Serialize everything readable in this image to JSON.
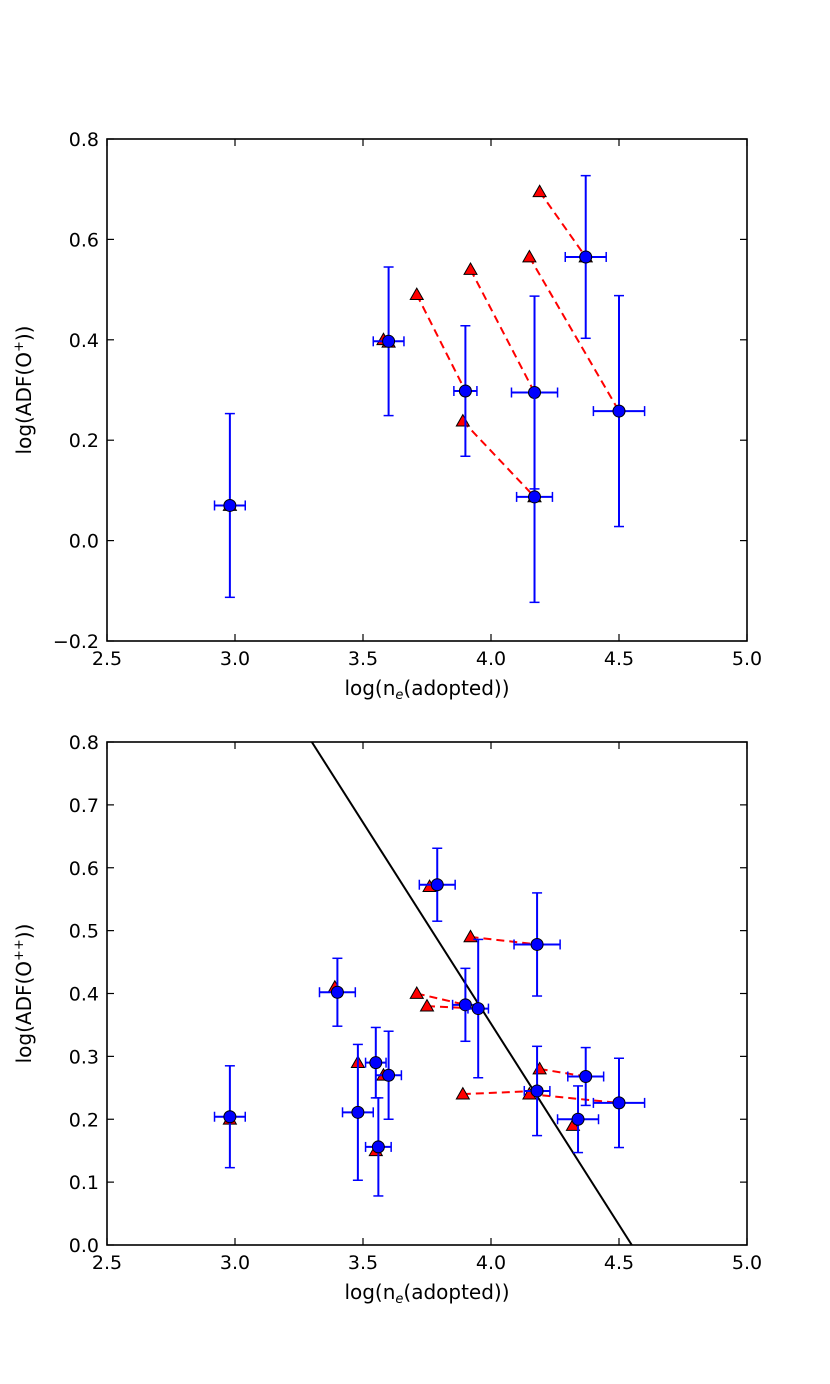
{
  "chart_data": [
    {
      "type": "scatter",
      "title": "",
      "xlabel": "log(n_e(adopted))",
      "xlabel_parts": {
        "pre": "log(n",
        "sub": "e",
        "post": "(adopted))"
      },
      "ylabel": "log(ADF(O^+))",
      "ylabel_parts": {
        "pre": "log(ADF(O",
        "sup": "+",
        "post": "))"
      },
      "xlim": [
        2.5,
        5.0
      ],
      "ylim": [
        -0.2,
        0.8
      ],
      "xticks": [
        2.5,
        3.0,
        3.5,
        4.0,
        4.5,
        5.0
      ],
      "xtick_labels": [
        "2.5",
        "3.0",
        "3.5",
        "4.0",
        "4.5",
        "5.0"
      ],
      "yticks": [
        -0.2,
        0.0,
        0.2,
        0.4,
        0.6,
        0.8
      ],
      "ytick_labels": [
        "−0.2",
        "0.0",
        "0.2",
        "0.4",
        "0.6",
        "0.8"
      ],
      "points": [
        {
          "x": 2.98,
          "y": 0.07,
          "xerr": 0.06,
          "yerr": 0.183
        },
        {
          "x": 3.6,
          "y": 0.397,
          "xerr": 0.06,
          "yerr": 0.148
        },
        {
          "x": 3.9,
          "y": 0.298,
          "xerr": 0.045,
          "yerr": 0.13
        },
        {
          "x": 4.17,
          "y": 0.295,
          "xerr": 0.09,
          "yerr": 0.192
        },
        {
          "x": 4.17,
          "y": 0.087,
          "xerr": 0.07,
          "yerr": 0.21
        },
        {
          "x": 4.37,
          "y": 0.565,
          "xerr": 0.08,
          "yerr": 0.162
        },
        {
          "x": 4.5,
          "y": 0.258,
          "xerr": 0.1,
          "yerr": 0.23
        }
      ],
      "triangles": [
        {
          "x": 2.98,
          "y": 0.07
        },
        {
          "x": 3.58,
          "y": 0.4
        },
        {
          "x": 3.6,
          "y": 0.395
        },
        {
          "x": 3.71,
          "y": 0.49
        },
        {
          "x": 3.89,
          "y": 0.238
        },
        {
          "x": 3.92,
          "y": 0.54
        },
        {
          "x": 4.15,
          "y": 0.565
        },
        {
          "x": 4.17,
          "y": 0.087
        },
        {
          "x": 4.19,
          "y": 0.695
        },
        {
          "x": 4.37,
          "y": 0.565
        }
      ],
      "dashed_links": [
        {
          "x1": 3.71,
          "y1": 0.49,
          "x2": 3.9,
          "y2": 0.298
        },
        {
          "x1": 3.92,
          "y1": 0.54,
          "x2": 4.17,
          "y2": 0.295
        },
        {
          "x1": 4.15,
          "y1": 0.565,
          "x2": 4.5,
          "y2": 0.258
        },
        {
          "x1": 3.89,
          "y1": 0.238,
          "x2": 4.17,
          "y2": 0.087
        },
        {
          "x1": 4.19,
          "y1": 0.695,
          "x2": 4.37,
          "y2": 0.565
        }
      ],
      "fit_line": null
    },
    {
      "type": "scatter",
      "title": "",
      "xlabel": "log(n_e(adopted))",
      "xlabel_parts": {
        "pre": "log(n",
        "sub": "e",
        "post": "(adopted))"
      },
      "ylabel": "log(ADF(O^++))",
      "ylabel_parts": {
        "pre": "log(ADF(O",
        "sup": "++",
        "post": "))"
      },
      "xlim": [
        2.5,
        5.0
      ],
      "ylim": [
        0.0,
        0.8
      ],
      "xticks": [
        2.5,
        3.0,
        3.5,
        4.0,
        4.5,
        5.0
      ],
      "xtick_labels": [
        "2.5",
        "3.0",
        "3.5",
        "4.0",
        "4.5",
        "5.0"
      ],
      "yticks": [
        0.0,
        0.1,
        0.2,
        0.3,
        0.4,
        0.5,
        0.6,
        0.7,
        0.8
      ],
      "ytick_labels": [
        "0.0",
        "0.1",
        "0.2",
        "0.3",
        "0.4",
        "0.5",
        "0.6",
        "0.7",
        "0.8"
      ],
      "points": [
        {
          "x": 2.98,
          "y": 0.204,
          "xerr": 0.06,
          "yerr": 0.081
        },
        {
          "x": 3.4,
          "y": 0.402,
          "xerr": 0.07,
          "yerr": 0.054
        },
        {
          "x": 3.48,
          "y": 0.211,
          "xerr": 0.06,
          "yerr": 0.108
        },
        {
          "x": 3.55,
          "y": 0.29,
          "xerr": 0.04,
          "yerr": 0.056
        },
        {
          "x": 3.56,
          "y": 0.156,
          "xerr": 0.05,
          "yerr": 0.078
        },
        {
          "x": 3.6,
          "y": 0.27,
          "xerr": 0.05,
          "yerr": 0.07
        },
        {
          "x": 3.79,
          "y": 0.573,
          "xerr": 0.07,
          "yerr": 0.058
        },
        {
          "x": 3.9,
          "y": 0.382,
          "xerr": 0.05,
          "yerr": 0.058
        },
        {
          "x": 3.95,
          "y": 0.376,
          "xerr": 0.04,
          "yerr": 0.11
        },
        {
          "x": 4.18,
          "y": 0.478,
          "xerr": 0.09,
          "yerr": 0.082
        },
        {
          "x": 4.18,
          "y": 0.245,
          "xerr": 0.05,
          "yerr": 0.071
        },
        {
          "x": 4.34,
          "y": 0.2,
          "xerr": 0.08,
          "yerr": 0.053
        },
        {
          "x": 4.37,
          "y": 0.268,
          "xerr": 0.07,
          "yerr": 0.046
        },
        {
          "x": 4.5,
          "y": 0.226,
          "xerr": 0.1,
          "yerr": 0.071
        }
      ],
      "triangles": [
        {
          "x": 2.98,
          "y": 0.2
        },
        {
          "x": 3.39,
          "y": 0.41
        },
        {
          "x": 3.48,
          "y": 0.29
        },
        {
          "x": 3.55,
          "y": 0.15
        },
        {
          "x": 3.58,
          "y": 0.27
        },
        {
          "x": 3.71,
          "y": 0.4
        },
        {
          "x": 3.75,
          "y": 0.38
        },
        {
          "x": 3.76,
          "y": 0.57
        },
        {
          "x": 3.89,
          "y": 0.24
        },
        {
          "x": 3.92,
          "y": 0.49
        },
        {
          "x": 4.15,
          "y": 0.24
        },
        {
          "x": 4.19,
          "y": 0.28
        },
        {
          "x": 4.32,
          "y": 0.19
        }
      ],
      "dashed_links": [
        {
          "x1": 3.92,
          "y1": 0.49,
          "x2": 4.18,
          "y2": 0.478
        },
        {
          "x1": 3.71,
          "y1": 0.4,
          "x2": 3.9,
          "y2": 0.382
        },
        {
          "x1": 3.75,
          "y1": 0.38,
          "x2": 3.95,
          "y2": 0.376
        },
        {
          "x1": 3.89,
          "y1": 0.24,
          "x2": 4.18,
          "y2": 0.245
        },
        {
          "x1": 4.15,
          "y1": 0.24,
          "x2": 4.5,
          "y2": 0.226
        },
        {
          "x1": 4.19,
          "y1": 0.28,
          "x2": 4.37,
          "y2": 0.268
        },
        {
          "x1": 4.32,
          "y1": 0.19,
          "x2": 4.34,
          "y2": 0.2
        }
      ],
      "fit_line": {
        "x1": 3.3,
        "y1": 0.8,
        "x2": 4.55,
        "y2": 0.0
      }
    }
  ],
  "colors": {
    "points": "#0000ff",
    "triangles": "#ff0000",
    "dashed_links": "#ff0000",
    "fit_line": "#000000"
  },
  "icons": {
    "point_marker": "circle-marker",
    "triangle_marker": "triangle-marker"
  }
}
